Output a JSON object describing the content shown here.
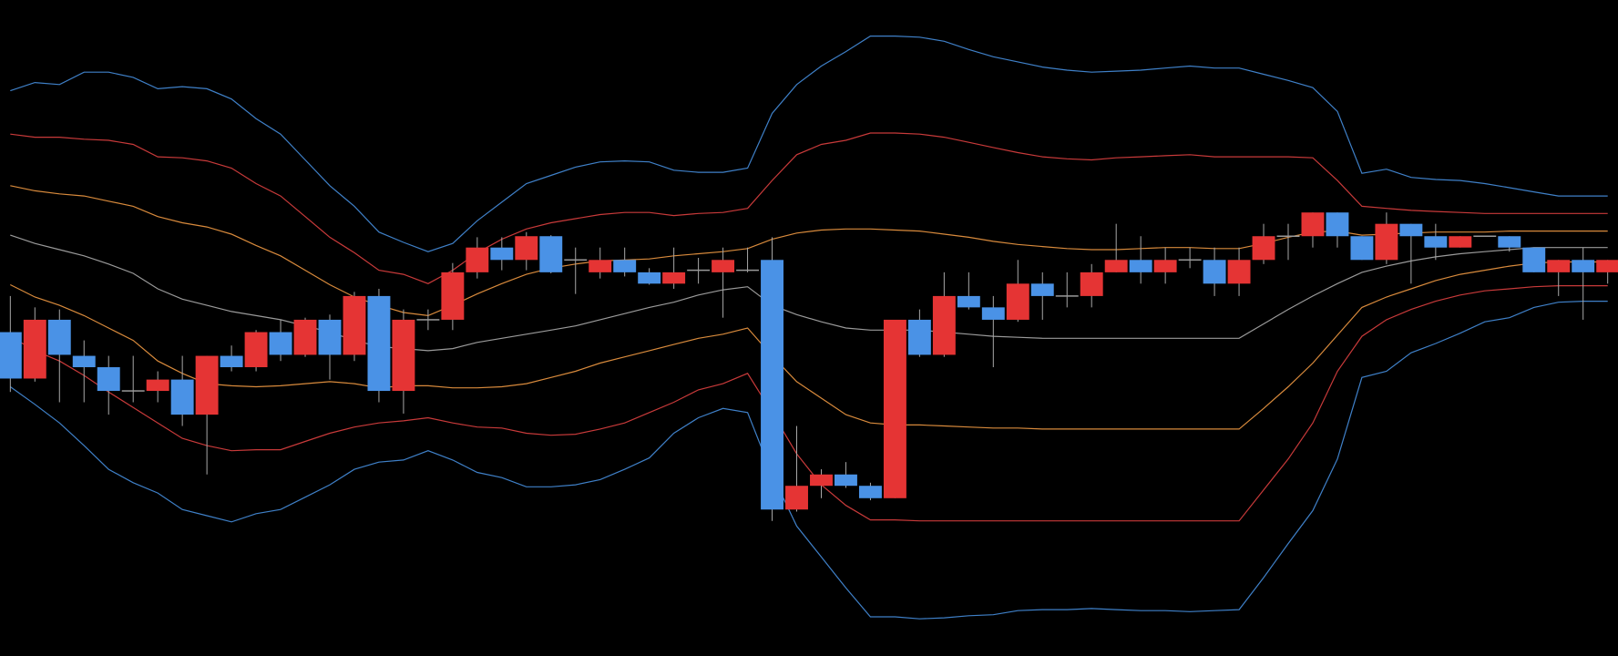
{
  "chart_data": {
    "type": "candlestick",
    "categories": [
      null,
      null,
      null,
      null,
      null,
      null,
      null,
      null,
      null,
      null,
      null,
      null,
      null,
      null,
      null,
      null,
      null,
      null,
      null,
      null,
      null,
      null,
      null,
      null,
      null,
      null,
      null,
      null,
      null,
      null,
      null,
      null,
      null,
      null,
      null,
      null,
      null,
      null,
      null,
      null,
      null,
      null,
      null,
      null,
      null,
      null,
      null,
      null,
      null,
      null,
      null,
      null,
      null,
      null,
      null,
      null,
      null,
      null,
      null,
      null,
      null,
      null,
      null,
      null,
      null,
      null
    ],
    "open": [
      314,
      269,
      326,
      291,
      280,
      257,
      257,
      268,
      234,
      291,
      280,
      314,
      292,
      326,
      292,
      349,
      257,
      326,
      326,
      372,
      396,
      384,
      407,
      384,
      372,
      384,
      372,
      361,
      374,
      372,
      374,
      384,
      142,
      165,
      176,
      165,
      153,
      326,
      292,
      349,
      338,
      326,
      361,
      349,
      349,
      372,
      384,
      372,
      384,
      384,
      361,
      384,
      407,
      407,
      430,
      407,
      384,
      419,
      407,
      396,
      407,
      407,
      396,
      372,
      384,
      372
    ],
    "high": [
      349,
      338,
      336,
      306,
      291,
      291,
      276,
      291,
      291,
      301,
      316,
      326,
      328,
      331,
      353,
      356,
      336,
      336,
      381,
      406,
      406,
      411,
      408,
      396,
      396,
      396,
      376,
      396,
      386,
      396,
      396,
      406,
      223,
      181,
      188,
      168,
      326,
      336,
      372,
      372,
      349,
      384,
      372,
      372,
      380,
      419,
      407,
      396,
      396,
      396,
      396,
      419,
      419,
      430,
      430,
      407,
      430,
      419,
      419,
      407,
      407,
      407,
      396,
      384,
      396,
      384
    ],
    "low": [
      256,
      266,
      246,
      246,
      234,
      246,
      246,
      223,
      176,
      276,
      276,
      286,
      290,
      268,
      286,
      246,
      235,
      316,
      316,
      366,
      374,
      374,
      371,
      351,
      366,
      368,
      360,
      356,
      361,
      328,
      372,
      131,
      140,
      153,
      163,
      151,
      153,
      290,
      290,
      336,
      280,
      324,
      326,
      338,
      338,
      372,
      361,
      361,
      376,
      349,
      349,
      380,
      384,
      396,
      396,
      384,
      380,
      361,
      384,
      396,
      407,
      392,
      372,
      349,
      326,
      361
    ],
    "close": [
      269,
      326,
      292,
      280,
      257,
      257,
      268,
      234,
      291,
      280,
      314,
      292,
      326,
      292,
      349,
      257,
      326,
      326,
      372,
      396,
      384,
      407,
      372,
      384,
      384,
      372,
      361,
      372,
      374,
      384,
      374,
      142,
      165,
      176,
      165,
      153,
      326,
      292,
      349,
      338,
      326,
      361,
      349,
      349,
      372,
      384,
      372,
      384,
      384,
      361,
      384,
      407,
      407,
      430,
      407,
      384,
      419,
      407,
      396,
      407,
      407,
      396,
      372,
      384,
      372,
      384
    ],
    "up_color": "#e53434",
    "down_color": "#4a92e6",
    "flat_color": "#9a9a9a",
    "wick_color": "#a8a8a8",
    "lines": [
      {
        "color": "#3f80c8",
        "values": [
          548,
          556,
          554,
          566,
          566,
          561,
          550,
          552,
          550,
          540,
          521,
          506,
          481,
          456,
          436,
          411,
          401,
          392,
          400,
          422,
          440,
          458,
          466,
          474,
          479,
          480,
          479,
          471,
          469,
          469,
          473,
          526,
          554,
          572,
          586,
          601,
          601,
          600,
          596,
          588,
          581,
          576,
          571,
          568,
          566,
          567,
          568,
          570,
          572,
          570,
          570,
          564,
          558,
          551,
          528,
          468,
          472,
          464,
          462,
          461,
          458,
          454,
          450,
          446,
          446,
          446
        ]
      },
      {
        "color": "#c83a3a",
        "values": [
          506,
          503,
          503,
          501,
          500,
          496,
          484,
          483,
          480,
          473,
          458,
          446,
          426,
          406,
          391,
          374,
          370,
          361,
          374,
          391,
          404,
          414,
          420,
          424,
          428,
          430,
          430,
          427,
          429,
          430,
          434,
          461,
          486,
          496,
          500,
          507,
          507,
          506,
          503,
          498,
          493,
          488,
          484,
          482,
          481,
          483,
          484,
          485,
          486,
          484,
          484,
          484,
          484,
          483,
          461,
          436,
          434,
          432,
          431,
          430,
          429,
          429,
          429,
          429,
          429,
          429
        ]
      },
      {
        "color": "#d88a3c",
        "values": [
          456,
          451,
          448,
          446,
          441,
          436,
          426,
          420,
          416,
          409,
          398,
          388,
          374,
          360,
          348,
          340,
          333,
          330,
          340,
          351,
          361,
          370,
          376,
          380,
          383,
          384,
          385,
          388,
          390,
          392,
          395,
          404,
          410,
          413,
          414,
          414,
          413,
          412,
          409,
          406,
          402,
          399,
          397,
          395,
          394,
          394,
          395,
          396,
          396,
          395,
          395,
          400,
          406,
          411,
          412,
          408,
          409,
          410,
          411,
          411,
          411,
          412,
          412,
          412,
          412,
          412
        ]
      },
      {
        "color": "#9a9a9a",
        "values": [
          408,
          400,
          394,
          388,
          380,
          371,
          356,
          346,
          340,
          334,
          330,
          326,
          320,
          314,
          306,
          300,
          298,
          296,
          298,
          304,
          308,
          312,
          316,
          320,
          326,
          332,
          338,
          343,
          350,
          355,
          358,
          340,
          331,
          324,
          318,
          316,
          316,
          316,
          314,
          312,
          310,
          309,
          308,
          308,
          308,
          308,
          308,
          308,
          308,
          308,
          308,
          322,
          336,
          349,
          361,
          372,
          378,
          383,
          387,
          390,
          392,
          394,
          396,
          396,
          396,
          396
        ]
      },
      {
        "color": "#d88a3c",
        "values": [
          360,
          348,
          340,
          330,
          318,
          306,
          286,
          274,
          264,
          262,
          261,
          262,
          264,
          266,
          264,
          260,
          262,
          262,
          260,
          260,
          261,
          264,
          270,
          276,
          284,
          290,
          296,
          302,
          308,
          312,
          318,
          291,
          266,
          250,
          234,
          226,
          224,
          224,
          223,
          222,
          221,
          221,
          220,
          220,
          220,
          220,
          220,
          220,
          220,
          220,
          220,
          240,
          261,
          284,
          311,
          338,
          348,
          356,
          364,
          370,
          374,
          378,
          381,
          382,
          382,
          382
        ]
      },
      {
        "color": "#c83a3a",
        "values": [
          310,
          296,
          286,
          272,
          256,
          241,
          226,
          211,
          204,
          199,
          200,
          200,
          208,
          216,
          222,
          226,
          228,
          231,
          226,
          222,
          221,
          216,
          214,
          215,
          220,
          226,
          236,
          246,
          258,
          264,
          274,
          236,
          196,
          166,
          146,
          132,
          132,
          131,
          131,
          131,
          131,
          131,
          131,
          131,
          131,
          131,
          131,
          131,
          131,
          131,
          131,
          161,
          191,
          226,
          276,
          310,
          326,
          336,
          344,
          350,
          354,
          356,
          358,
          359,
          359,
          359
        ]
      },
      {
        "color": "#3f80c8",
        "values": [
          261,
          244,
          226,
          204,
          181,
          168,
          158,
          142,
          136,
          130,
          138,
          142,
          154,
          166,
          181,
          188,
          190,
          199,
          190,
          178,
          173,
          164,
          164,
          166,
          171,
          181,
          192,
          216,
          231,
          240,
          236,
          176,
          126,
          96,
          66,
          38,
          38,
          36,
          37,
          39,
          40,
          44,
          45,
          45,
          46,
          45,
          44,
          44,
          43,
          44,
          45,
          76,
          109,
          141,
          191,
          270,
          276,
          294,
          303,
          313,
          324,
          328,
          338,
          343,
          344,
          344
        ]
      }
    ],
    "ylim": [
      0,
      636
    ]
  }
}
